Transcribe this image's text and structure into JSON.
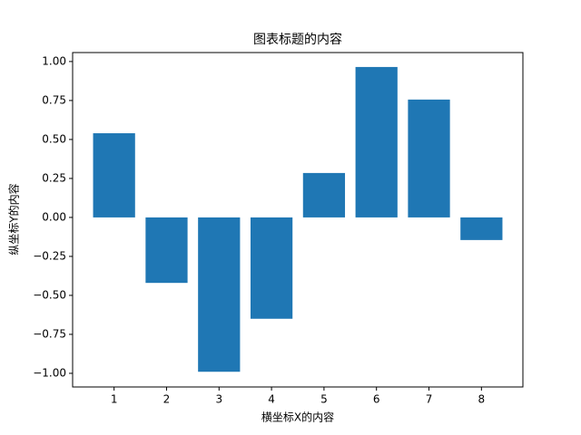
{
  "chart_data": {
    "type": "bar",
    "title": "图表标题的内容",
    "x_label": "横坐标X的内容",
    "y_label": "纵坐标Y的内容",
    "x": [
      1,
      2,
      3,
      4,
      5,
      6,
      7,
      8
    ],
    "values": [
      0.54,
      -0.42,
      -0.99,
      -0.65,
      0.285,
      0.965,
      0.756,
      -0.145
    ],
    "color": "#1f77b4",
    "bar_width": 0.8,
    "xlim": [
      0.21,
      8.79
    ],
    "xticks": [
      1,
      2,
      3,
      4,
      5,
      6,
      7,
      8
    ],
    "ylim": [
      -1.0875,
      1.0575
    ],
    "yticks": [
      {
        "value": -1,
        "label": "−1.00"
      },
      {
        "value": -0.75,
        "label": "−0.75"
      },
      {
        "value": -0.5,
        "label": "−0.50"
      },
      {
        "value": -0.25,
        "label": "−0.25"
      },
      {
        "value": 0,
        "label": "0.00"
      },
      {
        "value": 0.25,
        "label": "0.25"
      },
      {
        "value": 0.5,
        "label": "0.50"
      },
      {
        "value": 0.75,
        "label": "0.75"
      },
      {
        "value": 1,
        "label": "1.00"
      }
    ],
    "grid": false
  }
}
